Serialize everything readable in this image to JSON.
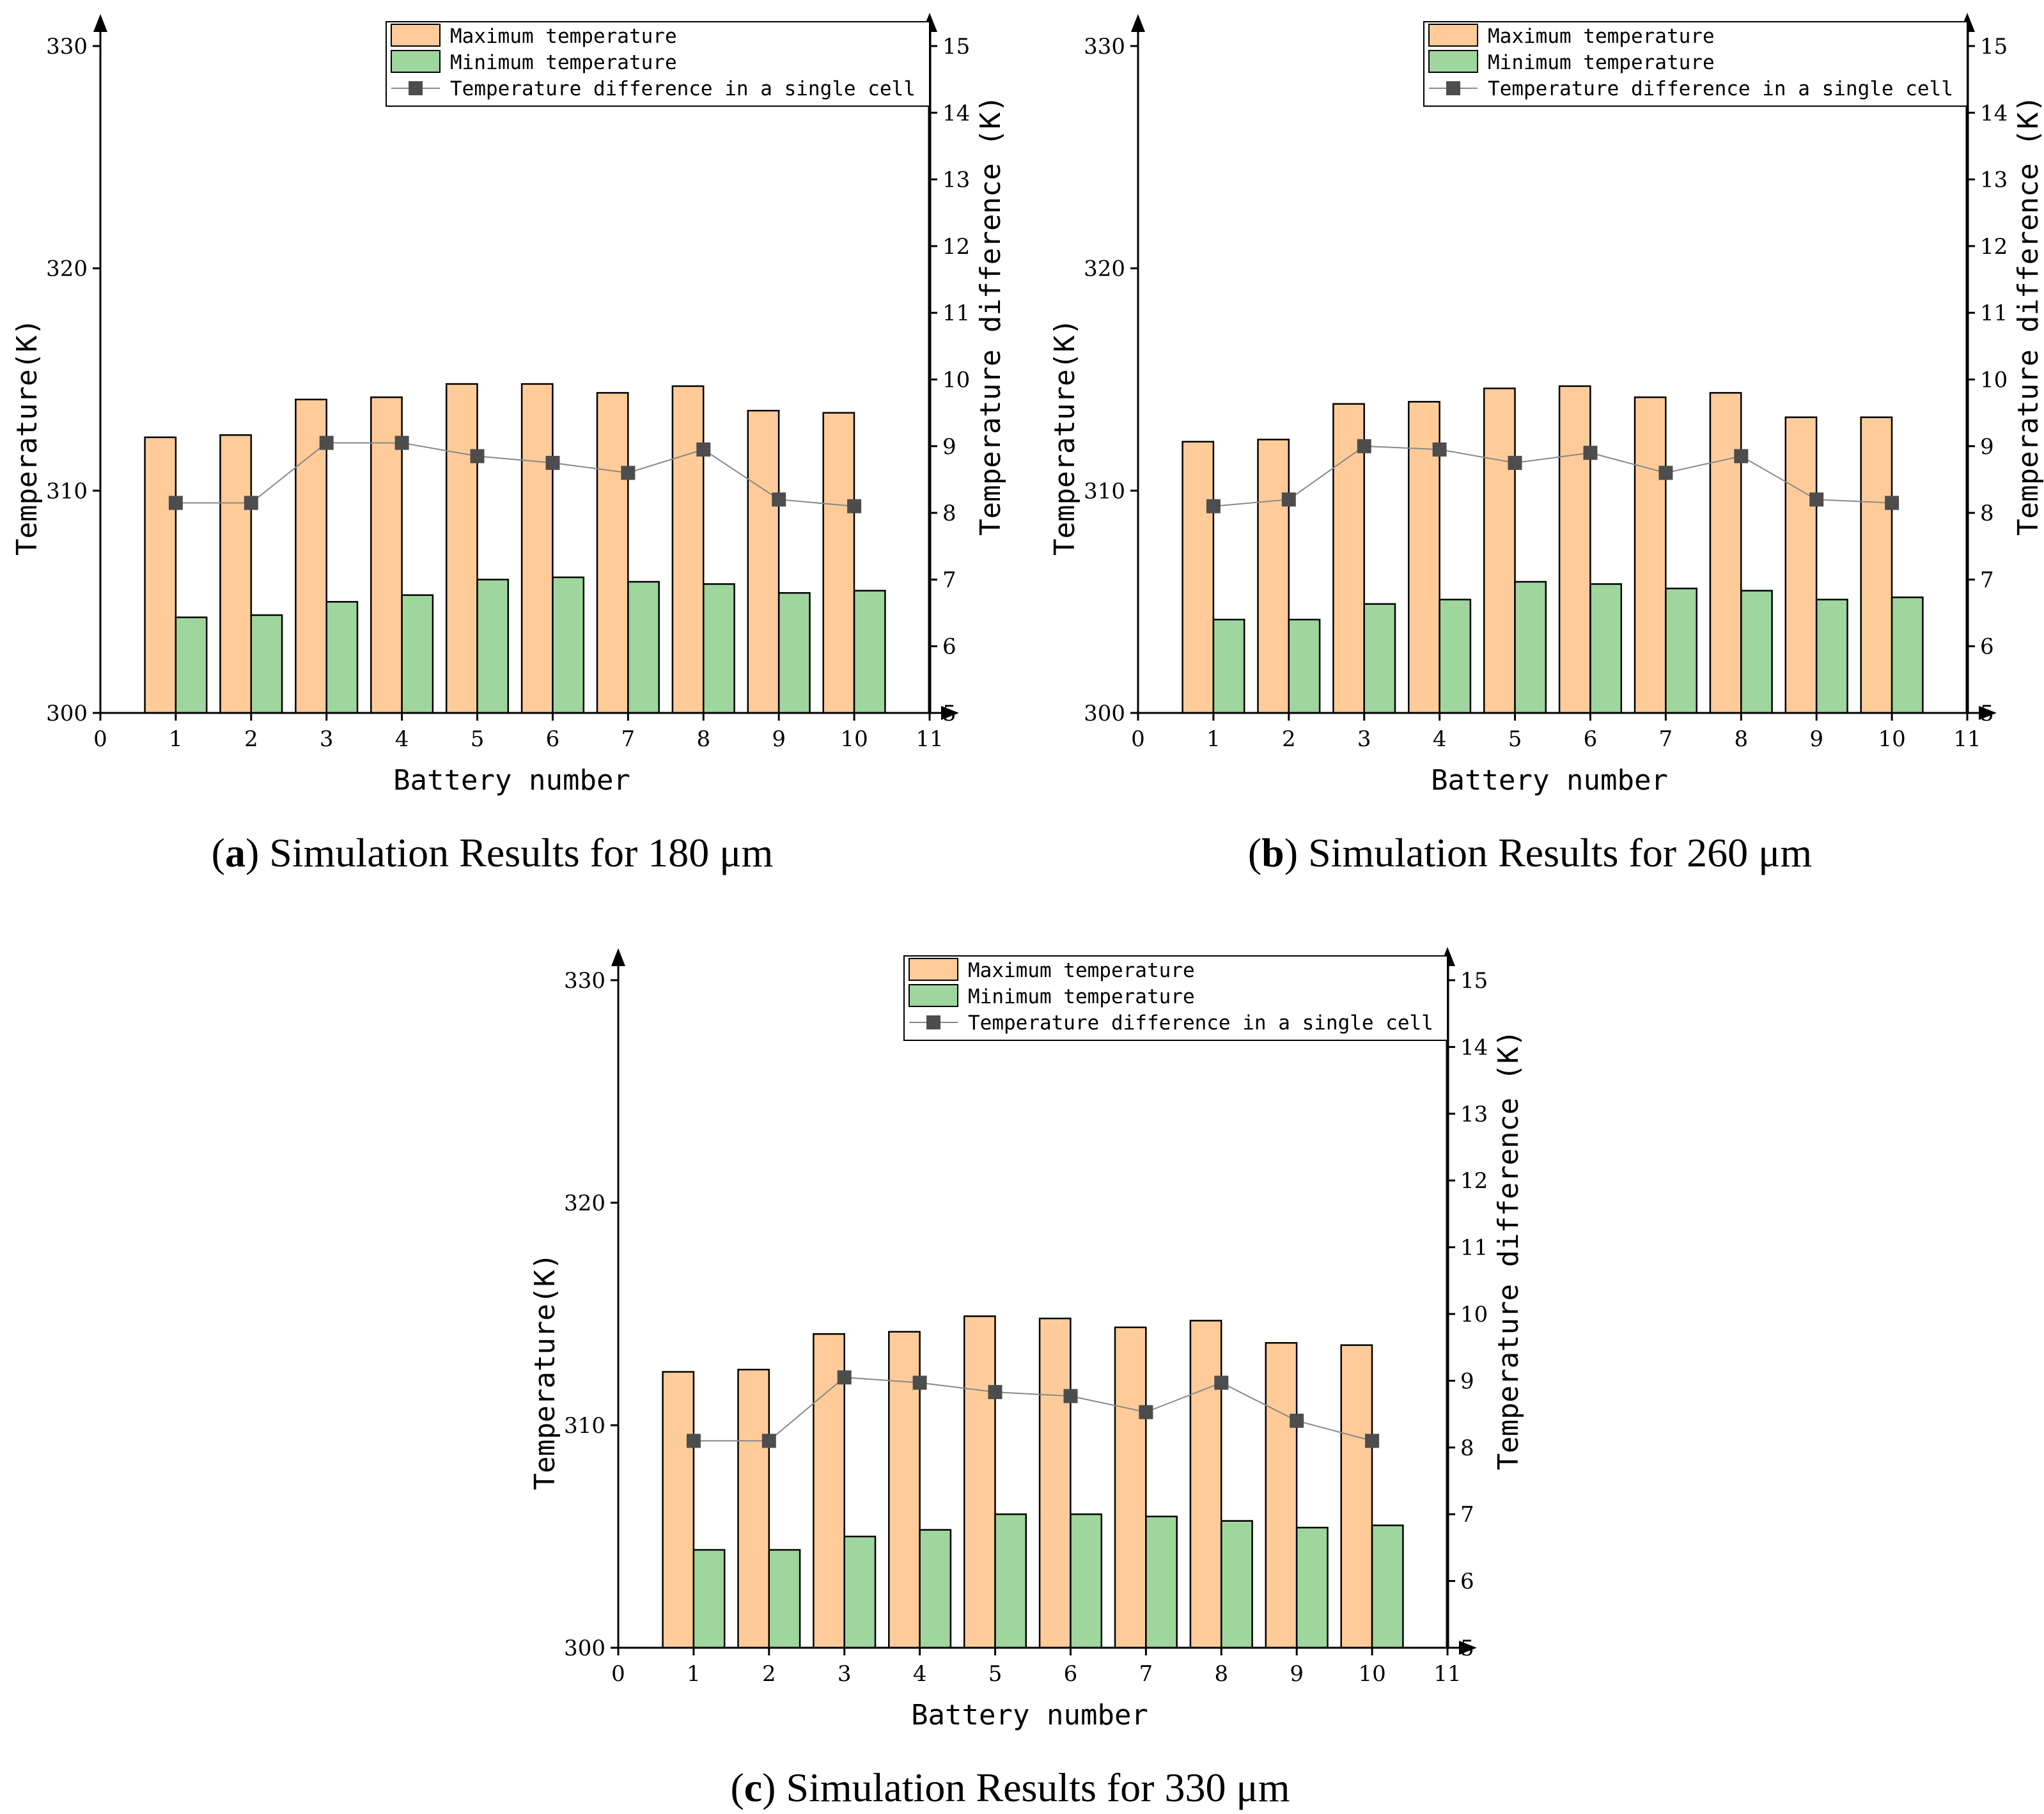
{
  "chart_data": [
    {
      "type": "bar",
      "panel": "a",
      "caption_letter": "a",
      "caption_text": "Simulation Results for 180 μm",
      "xlabel": "Battery number",
      "ylabel": "Temperature(K)",
      "y2label": "Temperature difference (K)",
      "xlim": [
        0,
        11
      ],
      "ylim": [
        300,
        330
      ],
      "y2lim": [
        5,
        15
      ],
      "xticks": [
        0,
        1,
        2,
        3,
        4,
        5,
        6,
        7,
        8,
        9,
        10,
        11
      ],
      "yticks": [
        300,
        310,
        320,
        330
      ],
      "y2ticks": [
        5,
        6,
        7,
        8,
        9,
        10,
        11,
        12,
        13,
        14,
        15
      ],
      "categories": [
        1,
        2,
        3,
        4,
        5,
        6,
        7,
        8,
        9,
        10
      ],
      "legend_position": "top-right",
      "series": [
        {
          "name": "Maximum temperature",
          "type": "bar",
          "axis": "left",
          "color": "#FFCC99",
          "values": [
            312.4,
            312.5,
            314.1,
            314.2,
            314.8,
            314.8,
            314.4,
            314.7,
            313.6,
            313.5
          ]
        },
        {
          "name": "Minimum temperature",
          "type": "bar",
          "axis": "left",
          "color": "#9ED69E",
          "values": [
            304.3,
            304.4,
            305.0,
            305.3,
            306.0,
            306.1,
            305.9,
            305.8,
            305.4,
            305.5
          ]
        },
        {
          "name": "Temperature difference in a single cell",
          "type": "line",
          "axis": "right",
          "color": "#4D4D4D",
          "values": [
            8.15,
            8.15,
            9.05,
            9.05,
            8.85,
            8.75,
            8.6,
            8.95,
            8.2,
            8.1
          ]
        }
      ]
    },
    {
      "type": "bar",
      "panel": "b",
      "caption_letter": "b",
      "caption_text": "Simulation Results for 260 μm",
      "xlabel": "Battery number",
      "ylabel": "Temperature(K)",
      "y2label": "Temperature difference (K)",
      "xlim": [
        0,
        11
      ],
      "ylim": [
        300,
        330
      ],
      "y2lim": [
        5,
        15
      ],
      "xticks": [
        0,
        1,
        2,
        3,
        4,
        5,
        6,
        7,
        8,
        9,
        10,
        11
      ],
      "yticks": [
        300,
        310,
        320,
        330
      ],
      "y2ticks": [
        5,
        6,
        7,
        8,
        9,
        10,
        11,
        12,
        13,
        14,
        15
      ],
      "categories": [
        1,
        2,
        3,
        4,
        5,
        6,
        7,
        8,
        9,
        10
      ],
      "legend_position": "top-right",
      "series": [
        {
          "name": "Maximum temperature",
          "type": "bar",
          "axis": "left",
          "color": "#FFCC99",
          "values": [
            312.2,
            312.3,
            313.9,
            314.0,
            314.6,
            314.7,
            314.2,
            314.4,
            313.3,
            313.3
          ]
        },
        {
          "name": "Minimum temperature",
          "type": "bar",
          "axis": "left",
          "color": "#9ED69E",
          "values": [
            304.2,
            304.2,
            304.9,
            305.1,
            305.9,
            305.8,
            305.6,
            305.5,
            305.1,
            305.2
          ]
        },
        {
          "name": "Temperature difference in a single cell",
          "type": "line",
          "axis": "right",
          "color": "#4D4D4D",
          "values": [
            8.1,
            8.2,
            9.0,
            8.95,
            8.75,
            8.9,
            8.6,
            8.85,
            8.2,
            8.15
          ]
        }
      ]
    },
    {
      "type": "bar",
      "panel": "c",
      "caption_letter": "c",
      "caption_text": "Simulation Results for 330 μm",
      "xlabel": "Battery number",
      "ylabel": "Temperature(K)",
      "y2label": "Temperature difference (K)",
      "xlim": [
        0,
        11
      ],
      "ylim": [
        300,
        330
      ],
      "y2lim": [
        5,
        15
      ],
      "xticks": [
        0,
        1,
        2,
        3,
        4,
        5,
        6,
        7,
        8,
        9,
        10,
        11
      ],
      "yticks": [
        300,
        310,
        320,
        330
      ],
      "y2ticks": [
        5,
        6,
        7,
        8,
        9,
        10,
        11,
        12,
        13,
        14,
        15
      ],
      "categories": [
        1,
        2,
        3,
        4,
        5,
        6,
        7,
        8,
        9,
        10
      ],
      "legend_position": "top-right",
      "series": [
        {
          "name": "Maximum temperature",
          "type": "bar",
          "axis": "left",
          "color": "#FFCC99",
          "values": [
            312.4,
            312.5,
            314.1,
            314.2,
            314.9,
            314.8,
            314.4,
            314.7,
            313.7,
            313.6
          ]
        },
        {
          "name": "Minimum temperature",
          "type": "bar",
          "axis": "left",
          "color": "#9ED69E",
          "values": [
            304.4,
            304.4,
            305.0,
            305.3,
            306.0,
            306.0,
            305.9,
            305.7,
            305.4,
            305.5
          ]
        },
        {
          "name": "Temperature difference in a single cell",
          "type": "line",
          "axis": "right",
          "color": "#4D4D4D",
          "values": [
            8.1,
            8.1,
            9.05,
            8.97,
            8.83,
            8.77,
            8.53,
            8.97,
            8.4,
            8.1
          ]
        }
      ]
    }
  ]
}
